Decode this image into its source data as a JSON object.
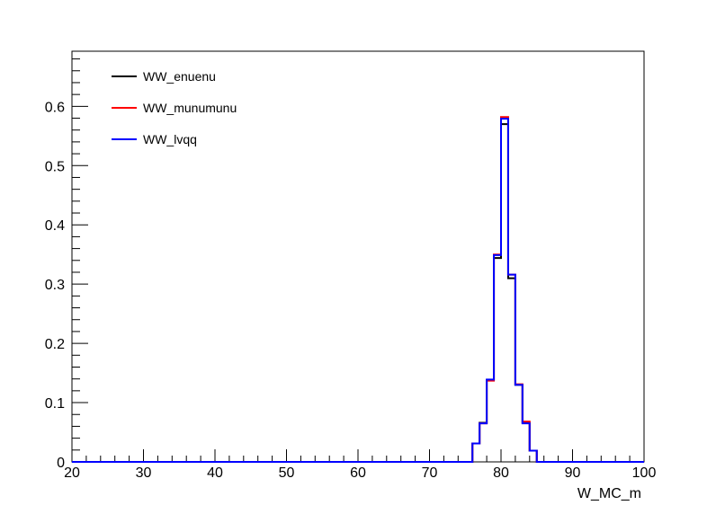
{
  "chart_data": {
    "type": "histogram",
    "title": "",
    "xlabel": "W_MC_m",
    "ylabel": "",
    "xlim": [
      20,
      100
    ],
    "ylim": [
      0,
      0.693
    ],
    "x_ticks": [
      20,
      30,
      40,
      50,
      60,
      70,
      80,
      90,
      100
    ],
    "y_ticks": [
      0,
      0.1,
      0.2,
      0.3,
      0.4,
      0.5,
      0.6
    ],
    "x_tick_labels": [
      "20",
      "30",
      "40",
      "50",
      "60",
      "70",
      "80",
      "90",
      "100"
    ],
    "y_tick_labels": [
      "0",
      "0.1",
      "0.2",
      "0.3",
      "0.4",
      "0.5",
      "0.6"
    ],
    "grid": false,
    "legend_position": "top-left",
    "bin_edges": [
      20,
      76,
      77,
      78,
      79,
      80,
      81,
      82,
      83,
      84,
      85,
      100
    ],
    "series": [
      {
        "name": "WW_enuenu",
        "color": "#000000",
        "values": [
          0,
          0.031,
          0.066,
          0.138,
          0.344,
          0.57,
          0.31,
          0.13,
          0.066,
          0.019,
          0
        ]
      },
      {
        "name": "WW_munumunu",
        "color": "#ff0000",
        "values": [
          0,
          0.031,
          0.065,
          0.137,
          0.35,
          0.582,
          0.316,
          0.131,
          0.068,
          0.019,
          0
        ]
      },
      {
        "name": "WW_lvqq",
        "color": "#0000ff",
        "values": [
          0,
          0.031,
          0.065,
          0.139,
          0.349,
          0.579,
          0.316,
          0.13,
          0.065,
          0.019,
          0
        ]
      }
    ]
  }
}
